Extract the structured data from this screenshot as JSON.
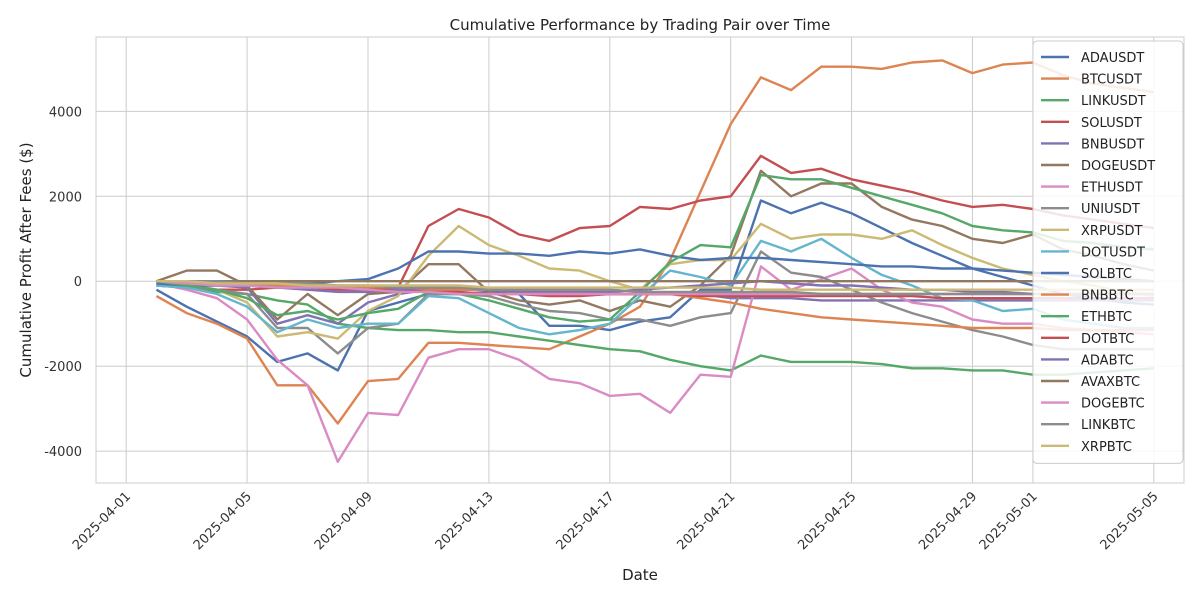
{
  "chart_data": {
    "type": "line",
    "title": "Cumulative Performance by Trading Pair over Time",
    "xlabel": "Date",
    "ylabel": "Cumulative Profit After Fees ($)",
    "x_range": [
      "2025-03-31",
      "2025-05-06"
    ],
    "ylim": [
      -4750,
      5750
    ],
    "x_ticks": [
      "2025-04-01",
      "2025-04-05",
      "2025-04-09",
      "2025-04-13",
      "2025-04-17",
      "2025-04-21",
      "2025-04-25",
      "2025-04-29",
      "2025-05-01",
      "2025-05-05"
    ],
    "y_ticks": [
      -4000,
      -2000,
      0,
      2000,
      4000
    ],
    "grid": true,
    "legend_position": "top-right",
    "x": [
      "2025-04-02",
      "2025-04-03",
      "2025-04-04",
      "2025-04-05",
      "2025-04-06",
      "2025-04-07",
      "2025-04-08",
      "2025-04-09",
      "2025-04-10",
      "2025-04-11",
      "2025-04-12",
      "2025-04-13",
      "2025-04-14",
      "2025-04-15",
      "2025-04-16",
      "2025-04-17",
      "2025-04-18",
      "2025-04-19",
      "2025-04-20",
      "2025-04-21",
      "2025-04-22",
      "2025-04-23",
      "2025-04-24",
      "2025-04-25",
      "2025-04-26",
      "2025-04-27",
      "2025-04-28",
      "2025-04-29",
      "2025-04-30",
      "2025-05-01",
      "2025-05-02",
      "2025-05-03",
      "2025-05-04",
      "2025-05-05"
    ],
    "series": [
      {
        "name": "ADAUSDT",
        "color": "#4c72b0",
        "values": [
          -200,
          -600,
          -950,
          -1300,
          -1900,
          -1700,
          -2100,
          -700,
          -500,
          -300,
          -300,
          -250,
          -300,
          -1050,
          -1050,
          -1150,
          -950,
          -850,
          -200,
          -200,
          1900,
          1600,
          1850,
          1600,
          1250,
          900,
          600,
          300,
          100,
          -100,
          -300,
          -400,
          -500,
          -550
        ]
      },
      {
        "name": "BTCUSDT",
        "color": "#dd8452",
        "values": [
          -350,
          -750,
          -1000,
          -1350,
          -2450,
          -2450,
          -3350,
          -2350,
          -2300,
          -1450,
          -1450,
          -1500,
          -1550,
          -1600,
          -1300,
          -1000,
          -600,
          500,
          2100,
          3700,
          4800,
          4500,
          5050,
          5050,
          5000,
          5150,
          5200,
          4900,
          5100,
          5150,
          4850,
          4650,
          4550,
          4450
        ]
      },
      {
        "name": "LINKUSDT",
        "color": "#55a868",
        "values": [
          -50,
          -150,
          -250,
          -300,
          -450,
          -550,
          -1000,
          -1100,
          -1150,
          -1150,
          -1200,
          -1200,
          -1300,
          -1400,
          -1500,
          -1600,
          -1650,
          -1850,
          -2000,
          -2100,
          -1750,
          -1900,
          -1900,
          -1900,
          -1950,
          -2050,
          -2050,
          -2100,
          -2100,
          -2200,
          -2200,
          -2150,
          -2100,
          -2050
        ]
      },
      {
        "name": "SOLUSDT",
        "color": "#c44e52",
        "values": [
          -100,
          -150,
          -200,
          -200,
          -150,
          -150,
          -150,
          -200,
          -150,
          1300,
          1700,
          1500,
          1100,
          950,
          1250,
          1300,
          1750,
          1700,
          1900,
          2000,
          2950,
          2550,
          2650,
          2400,
          2250,
          2100,
          1900,
          1750,
          1800,
          1700,
          1550,
          1450,
          1350,
          1250
        ]
      },
      {
        "name": "BNBUSDT",
        "color": "#8172b3",
        "values": [
          -50,
          -100,
          -100,
          -150,
          -1000,
          -800,
          -1000,
          -500,
          -300,
          -200,
          -200,
          -200,
          -250,
          -300,
          -300,
          -300,
          -300,
          -300,
          -300,
          -400,
          -400,
          -400,
          -450,
          -450,
          -450,
          -450,
          -450,
          -450,
          -450,
          -450,
          -450,
          -450,
          -450,
          -450
        ]
      },
      {
        "name": "DOGEUSDT",
        "color": "#937860",
        "values": [
          0,
          250,
          250,
          -100,
          -900,
          -300,
          -800,
          -300,
          -250,
          400,
          400,
          -250,
          -450,
          -550,
          -450,
          -700,
          -450,
          -600,
          -100,
          600,
          2600,
          2000,
          2300,
          2300,
          1750,
          1450,
          1300,
          1000,
          900,
          1100,
          750,
          600,
          400,
          250
        ]
      },
      {
        "name": "ETHUSDT",
        "color": "#da8bc3",
        "values": [
          -50,
          -200,
          -400,
          -900,
          -1850,
          -2450,
          -4250,
          -3100,
          -3150,
          -1800,
          -1600,
          -1600,
          -1850,
          -2300,
          -2400,
          -2700,
          -2650,
          -3100,
          -2200,
          -2250,
          350,
          -200,
          50,
          300,
          -200,
          -500,
          -600,
          -900,
          -1000,
          -1000,
          -1100,
          -1150,
          -1200,
          -1250
        ]
      },
      {
        "name": "UNIUSDT",
        "color": "#8c8c8c",
        "values": [
          -100,
          -150,
          -200,
          -300,
          -1100,
          -1100,
          -1700,
          -1100,
          -1000,
          -300,
          -300,
          -350,
          -550,
          -700,
          -750,
          -900,
          -900,
          -1050,
          -850,
          -750,
          700,
          200,
          100,
          -200,
          -500,
          -750,
          -950,
          -1150,
          -1300,
          -1500,
          -1600,
          -1600,
          -1600,
          -1600
        ]
      },
      {
        "name": "XRPUSDT",
        "color": "#ccb974",
        "values": [
          0,
          -50,
          -200,
          -500,
          -1300,
          -1200,
          -1350,
          -700,
          -350,
          600,
          1300,
          850,
          600,
          300,
          250,
          0,
          -200,
          400,
          500,
          500,
          1350,
          1000,
          1100,
          1100,
          1000,
          1200,
          850,
          550,
          300,
          150,
          0,
          -100,
          -250,
          -350
        ]
      },
      {
        "name": "DOTUSDT",
        "color": "#64b5cd",
        "values": [
          -100,
          -150,
          -300,
          -600,
          -1200,
          -900,
          -1100,
          -1000,
          -1000,
          -350,
          -400,
          -750,
          -1100,
          -1250,
          -1150,
          -1000,
          -350,
          250,
          100,
          -100,
          950,
          700,
          1000,
          550,
          150,
          -100,
          -400,
          -450,
          -700,
          -650,
          -900,
          -1000,
          -1100,
          -1100
        ]
      },
      {
        "name": "SOLBTC",
        "color": "#4c72b0",
        "values": [
          -50,
          -100,
          -100,
          -100,
          -50,
          -50,
          0,
          50,
          300,
          700,
          700,
          650,
          650,
          600,
          700,
          650,
          750,
          600,
          500,
          550,
          550,
          500,
          450,
          400,
          350,
          350,
          300,
          300,
          250,
          200,
          150,
          100,
          50,
          0
        ]
      },
      {
        "name": "BNBBTC",
        "color": "#dd8452",
        "values": [
          0,
          -50,
          -50,
          -50,
          -100,
          -100,
          -150,
          -150,
          -150,
          -200,
          -200,
          -200,
          -250,
          -250,
          -250,
          -300,
          -300,
          -300,
          -400,
          -500,
          -650,
          -750,
          -850,
          -900,
          -950,
          -1000,
          -1050,
          -1100,
          -1100,
          -1100,
          -1150,
          -1150,
          -1150,
          -1150
        ]
      },
      {
        "name": "ETHBTC",
        "color": "#55a868",
        "values": [
          0,
          -100,
          -200,
          -400,
          -800,
          -700,
          -900,
          -750,
          -650,
          -250,
          -300,
          -450,
          -650,
          -850,
          -950,
          -900,
          -250,
          450,
          850,
          800,
          2500,
          2400,
          2400,
          2200,
          2000,
          1800,
          1600,
          1300,
          1200,
          1150,
          950,
          900,
          800,
          750
        ]
      },
      {
        "name": "DOTBTC",
        "color": "#c44e52",
        "values": [
          0,
          0,
          -50,
          -100,
          -150,
          -150,
          -200,
          -200,
          -200,
          -250,
          -250,
          -300,
          -300,
          -350,
          -350,
          -300,
          -300,
          -300,
          -350,
          -350,
          -350,
          -350,
          -350,
          -350,
          -350,
          -350,
          -400,
          -400,
          -400,
          -400,
          -400,
          -400,
          -400,
          -400
        ]
      },
      {
        "name": "ADABTC",
        "color": "#8172b3",
        "values": [
          0,
          0,
          -50,
          -100,
          -150,
          -200,
          -250,
          -250,
          -200,
          -150,
          -150,
          -200,
          -250,
          -250,
          -250,
          -250,
          -200,
          -150,
          -100,
          -50,
          0,
          -50,
          -100,
          -100,
          -150,
          -200,
          -200,
          -250,
          -250,
          -300,
          -300,
          -300,
          -300,
          -300
        ]
      },
      {
        "name": "AVAXBTC",
        "color": "#937860",
        "values": [
          0,
          0,
          0,
          0,
          0,
          0,
          0,
          0,
          0,
          0,
          0,
          0,
          0,
          0,
          0,
          0,
          0,
          0,
          0,
          0,
          0,
          0,
          0,
          0,
          0,
          0,
          0,
          0,
          0,
          0,
          0,
          0,
          0,
          0
        ]
      },
      {
        "name": "DOGEBTC",
        "color": "#da8bc3",
        "values": [
          0,
          -50,
          -100,
          -100,
          -150,
          -150,
          -150,
          -200,
          -250,
          -250,
          -300,
          -300,
          -300,
          -300,
          -300,
          -300,
          -300,
          -300,
          -300,
          -300,
          -300,
          -300,
          -300,
          -300,
          -300,
          -300,
          -300,
          -300,
          -300,
          -300,
          -300,
          -300,
          -300,
          -300
        ]
      },
      {
        "name": "LINKBTC",
        "color": "#8c8c8c",
        "values": [
          0,
          0,
          0,
          -50,
          -50,
          -50,
          -100,
          -100,
          -150,
          -150,
          -150,
          -200,
          -200,
          -200,
          -200,
          -200,
          -250,
          -250,
          -250,
          -250,
          -250,
          -250,
          -300,
          -300,
          -300,
          -300,
          -300,
          -300,
          -300,
          -300,
          -300,
          -300,
          -300,
          -300
        ]
      },
      {
        "name": "XRPBTC",
        "color": "#ccb974",
        "values": [
          0,
          0,
          -50,
          -50,
          -50,
          -100,
          -100,
          -100,
          -100,
          -100,
          -100,
          -150,
          -150,
          -150,
          -150,
          -150,
          -150,
          -150,
          -150,
          -150,
          -200,
          -200,
          -200,
          -200,
          -200,
          -200,
          -200,
          -200,
          -200,
          -200,
          -200,
          -200,
          -200,
          -200
        ]
      }
    ]
  }
}
